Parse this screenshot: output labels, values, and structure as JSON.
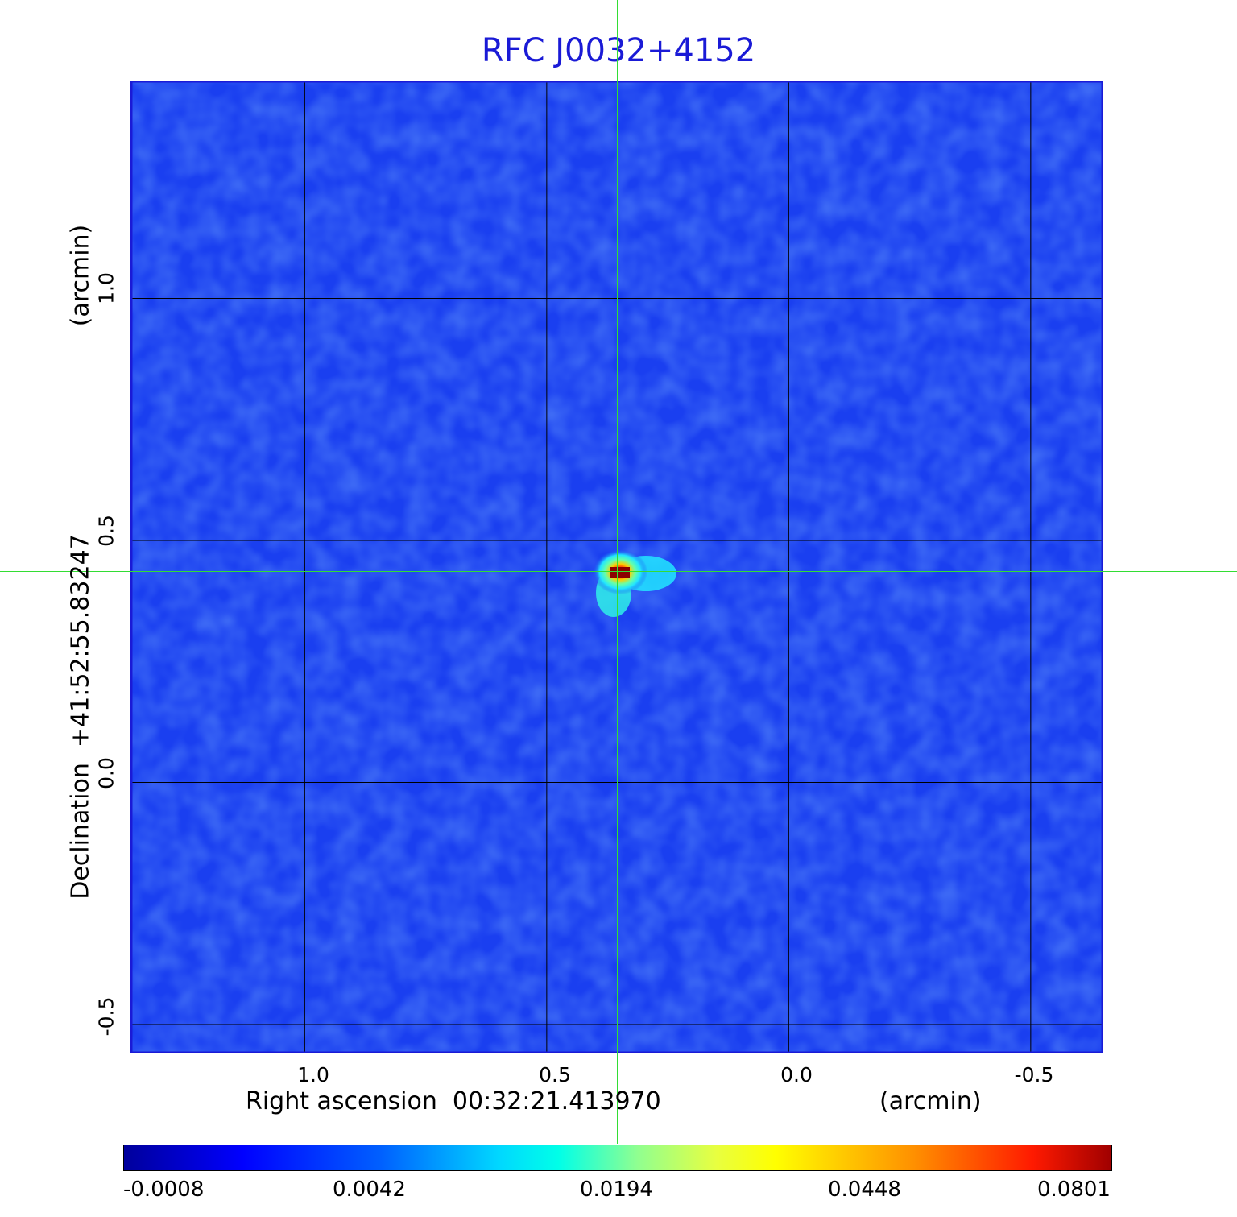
{
  "chart_data": {
    "type": "heatmap",
    "title": "RFC J0032+4152",
    "xlabel": "Right ascension  00:32:21.413970",
    "xlabel_unit": "(arcmin)",
    "ylabel": "Declination  +41:52:55.83247",
    "ylabel_unit": "(arcmin)",
    "x_ticks": [
      "1.0",
      "0.5",
      "0.0",
      "-0.5"
    ],
    "y_ticks": [
      "1.0",
      "0.5",
      "0.0",
      "-0.5"
    ],
    "xlim": [
      1.36,
      -0.65
    ],
    "ylim": [
      -0.56,
      1.45
    ],
    "grid": true,
    "colormap": "jet",
    "colorbar_ticks": [
      "-0.0008",
      "0.0042",
      "0.0194",
      "0.0448",
      "0.0801"
    ],
    "colorbar_range": [
      -0.0008,
      0.0801
    ],
    "peak": {
      "x": 0.36,
      "y": 0.43,
      "value": 0.0801
    },
    "crosshair": {
      "x": 0.36,
      "y": 0.43
    },
    "background_color": "#1a3ff0",
    "crosshair_color": "#33dd33",
    "title_color": "#1a1ad6"
  }
}
